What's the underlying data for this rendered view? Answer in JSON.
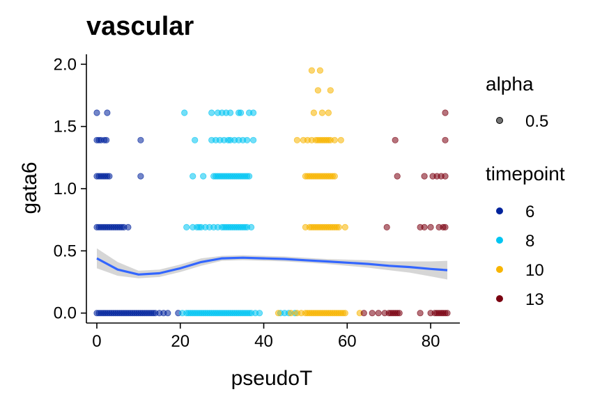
{
  "chart_data": {
    "type": "scatter",
    "title": "vascular",
    "xlabel": "pseudoT",
    "ylabel": "gata6",
    "xlim": [
      -2.5,
      87
    ],
    "ylim": [
      -0.08,
      2.08
    ],
    "x_ticks": [
      "0",
      "20",
      "40",
      "60",
      "80"
    ],
    "x_tick_values": [
      0,
      20,
      40,
      60,
      80
    ],
    "y_ticks": [
      "0.0",
      "0.5",
      "1.0",
      "1.5",
      "2.0"
    ],
    "y_tick_values": [
      0,
      0.5,
      1.0,
      1.5,
      2.0
    ],
    "grid": false,
    "legend_position": "right",
    "legend": {
      "alpha": {
        "title": "alpha",
        "entries": [
          {
            "label": "0.5",
            "color": "#000000"
          }
        ]
      },
      "timepoint": {
        "title": "timepoint",
        "entries": [
          {
            "label": "6",
            "color": "#00239C"
          },
          {
            "label": "8",
            "color": "#00C5F2"
          },
          {
            "label": "10",
            "color": "#F8B500"
          },
          {
            "label": "13",
            "color": "#7A0010"
          }
        ]
      }
    },
    "series": [
      {
        "name": "6",
        "color": "#00239C",
        "points": [
          [
            0,
            1.61
          ],
          [
            2.5,
            1.61
          ],
          [
            0,
            1.39
          ],
          [
            0.5,
            1.39
          ],
          [
            1,
            1.39
          ],
          [
            1.8,
            1.39
          ],
          [
            2.3,
            1.39
          ],
          [
            10.5,
            1.39
          ],
          [
            0,
            1.1
          ],
          [
            0.5,
            1.1
          ],
          [
            1,
            1.1
          ],
          [
            1.5,
            1.1
          ],
          [
            2,
            1.1
          ],
          [
            2.5,
            1.1
          ],
          [
            3,
            1.1
          ],
          [
            10.5,
            1.1
          ],
          [
            0,
            0.69
          ],
          [
            0.5,
            0.69
          ],
          [
            1,
            0.69
          ],
          [
            1.5,
            0.69
          ],
          [
            2,
            0.69
          ],
          [
            2.5,
            0.69
          ],
          [
            3,
            0.69
          ],
          [
            3.5,
            0.69
          ],
          [
            4,
            0.69
          ],
          [
            4.5,
            0.69
          ],
          [
            5,
            0.69
          ],
          [
            5.5,
            0.69
          ],
          [
            6,
            0.69
          ],
          [
            6.5,
            0.69
          ],
          [
            7.5,
            0.69
          ],
          [
            0,
            0
          ],
          [
            0.5,
            0
          ],
          [
            1,
            0
          ],
          [
            1.5,
            0
          ],
          [
            2,
            0
          ],
          [
            2.5,
            0
          ],
          [
            3,
            0
          ],
          [
            3.5,
            0
          ],
          [
            4,
            0
          ],
          [
            4.5,
            0
          ],
          [
            5,
            0
          ],
          [
            5.5,
            0
          ],
          [
            6,
            0
          ],
          [
            6.5,
            0
          ],
          [
            7,
            0
          ],
          [
            7.5,
            0
          ],
          [
            8,
            0
          ],
          [
            8.5,
            0
          ],
          [
            9,
            0
          ],
          [
            9.5,
            0
          ],
          [
            10,
            0
          ],
          [
            10.5,
            0
          ],
          [
            11,
            0
          ],
          [
            11.5,
            0
          ],
          [
            12,
            0
          ],
          [
            12.5,
            0
          ],
          [
            13,
            0
          ],
          [
            13.5,
            0
          ],
          [
            14,
            0
          ],
          [
            15,
            0
          ],
          [
            16,
            0
          ],
          [
            17,
            0
          ],
          [
            19.5,
            0
          ]
        ]
      },
      {
        "name": "8",
        "color": "#00C5F2",
        "points": [
          [
            21,
            1.61
          ],
          [
            27.5,
            1.61
          ],
          [
            29,
            1.61
          ],
          [
            30,
            1.61
          ],
          [
            31,
            1.61
          ],
          [
            32,
            1.61
          ],
          [
            34,
            1.61
          ],
          [
            34.5,
            1.61
          ],
          [
            36.5,
            1.61
          ],
          [
            37.5,
            1.61
          ],
          [
            23.5,
            1.39
          ],
          [
            27.5,
            1.39
          ],
          [
            28.5,
            1.39
          ],
          [
            29.5,
            1.39
          ],
          [
            30.5,
            1.39
          ],
          [
            31.5,
            1.39
          ],
          [
            32,
            1.39
          ],
          [
            33,
            1.39
          ],
          [
            34,
            1.39
          ],
          [
            35,
            1.39
          ],
          [
            36,
            1.39
          ],
          [
            37.5,
            1.39
          ],
          [
            23,
            1.1
          ],
          [
            25.5,
            1.1
          ],
          [
            28,
            1.1
          ],
          [
            28.5,
            1.1
          ],
          [
            29,
            1.1
          ],
          [
            29.5,
            1.1
          ],
          [
            30,
            1.1
          ],
          [
            30.5,
            1.1
          ],
          [
            31,
            1.1
          ],
          [
            31.5,
            1.1
          ],
          [
            32,
            1.1
          ],
          [
            32.5,
            1.1
          ],
          [
            33,
            1.1
          ],
          [
            33.5,
            1.1
          ],
          [
            34,
            1.1
          ],
          [
            34.5,
            1.1
          ],
          [
            35,
            1.1
          ],
          [
            35.5,
            1.1
          ],
          [
            36,
            1.1
          ],
          [
            36.5,
            1.1
          ],
          [
            21.5,
            0.69
          ],
          [
            23,
            0.69
          ],
          [
            24,
            0.69
          ],
          [
            24.5,
            0.69
          ],
          [
            25,
            0.69
          ],
          [
            26,
            0.69
          ],
          [
            27,
            0.69
          ],
          [
            28,
            0.69
          ],
          [
            29,
            0.69
          ],
          [
            30,
            0.69
          ],
          [
            30.5,
            0.69
          ],
          [
            31,
            0.69
          ],
          [
            31.5,
            0.69
          ],
          [
            32,
            0.69
          ],
          [
            32.5,
            0.69
          ],
          [
            33,
            0.69
          ],
          [
            33.5,
            0.69
          ],
          [
            34,
            0.69
          ],
          [
            34.5,
            0.69
          ],
          [
            35,
            0.69
          ],
          [
            35.5,
            0.69
          ],
          [
            36,
            0.69
          ],
          [
            37,
            0.69
          ],
          [
            20.5,
            0
          ],
          [
            21.5,
            0
          ],
          [
            22,
            0
          ],
          [
            22.5,
            0
          ],
          [
            23,
            0
          ],
          [
            23.5,
            0
          ],
          [
            24,
            0
          ],
          [
            24.5,
            0
          ],
          [
            25,
            0
          ],
          [
            25.5,
            0
          ],
          [
            26,
            0
          ],
          [
            26.5,
            0
          ],
          [
            27,
            0
          ],
          [
            27.5,
            0
          ],
          [
            28,
            0
          ],
          [
            28.5,
            0
          ],
          [
            29,
            0
          ],
          [
            29.5,
            0
          ],
          [
            30,
            0
          ],
          [
            30.5,
            0
          ],
          [
            31,
            0
          ],
          [
            31.5,
            0
          ],
          [
            32,
            0
          ],
          [
            32.5,
            0
          ],
          [
            33,
            0
          ],
          [
            33.5,
            0
          ],
          [
            34,
            0
          ],
          [
            34.5,
            0
          ],
          [
            35,
            0
          ],
          [
            35.5,
            0
          ],
          [
            36,
            0
          ],
          [
            36.5,
            0
          ],
          [
            37,
            0
          ],
          [
            38,
            0
          ],
          [
            39,
            0
          ],
          [
            44,
            0
          ],
          [
            45,
            0
          ],
          [
            46,
            0
          ],
          [
            47.5,
            0
          ]
        ]
      },
      {
        "name": "10",
        "color": "#F8B500",
        "points": [
          [
            51.5,
            1.95
          ],
          [
            53.5,
            1.95
          ],
          [
            53,
            1.79
          ],
          [
            56,
            1.79
          ],
          [
            52,
            1.61
          ],
          [
            54,
            1.61
          ],
          [
            55.5,
            1.61
          ],
          [
            48,
            1.39
          ],
          [
            49.5,
            1.39
          ],
          [
            50.5,
            1.39
          ],
          [
            51.5,
            1.39
          ],
          [
            52.5,
            1.39
          ],
          [
            53,
            1.39
          ],
          [
            53.5,
            1.39
          ],
          [
            54,
            1.39
          ],
          [
            54.5,
            1.39
          ],
          [
            55,
            1.39
          ],
          [
            55.5,
            1.39
          ],
          [
            56,
            1.39
          ],
          [
            57,
            1.39
          ],
          [
            58.5,
            1.39
          ],
          [
            50,
            1.1
          ],
          [
            50.5,
            1.1
          ],
          [
            51,
            1.1
          ],
          [
            51.5,
            1.1
          ],
          [
            52,
            1.1
          ],
          [
            52.5,
            1.1
          ],
          [
            53,
            1.1
          ],
          [
            53.5,
            1.1
          ],
          [
            54,
            1.1
          ],
          [
            54.5,
            1.1
          ],
          [
            55,
            1.1
          ],
          [
            55.5,
            1.1
          ],
          [
            56,
            1.1
          ],
          [
            56.5,
            1.1
          ],
          [
            57,
            1.1
          ],
          [
            50,
            0.69
          ],
          [
            51,
            0.69
          ],
          [
            51.5,
            0.69
          ],
          [
            52,
            0.69
          ],
          [
            52.5,
            0.69
          ],
          [
            53,
            0.69
          ],
          [
            53.5,
            0.69
          ],
          [
            54,
            0.69
          ],
          [
            54.5,
            0.69
          ],
          [
            55,
            0.69
          ],
          [
            55.5,
            0.69
          ],
          [
            56,
            0.69
          ],
          [
            56.5,
            0.69
          ],
          [
            57,
            0.69
          ],
          [
            57.5,
            0.69
          ],
          [
            58,
            0.69
          ],
          [
            59.5,
            0.69
          ],
          [
            43.5,
            0
          ],
          [
            46.5,
            0
          ],
          [
            48,
            0
          ],
          [
            49,
            0
          ],
          [
            50,
            0
          ],
          [
            50.5,
            0
          ],
          [
            51,
            0
          ],
          [
            51.5,
            0
          ],
          [
            52,
            0
          ],
          [
            52.5,
            0
          ],
          [
            53,
            0
          ],
          [
            53.5,
            0
          ],
          [
            54,
            0
          ],
          [
            54.5,
            0
          ],
          [
            55,
            0
          ],
          [
            55.5,
            0
          ],
          [
            56,
            0
          ],
          [
            56.5,
            0
          ],
          [
            57,
            0
          ],
          [
            57.5,
            0
          ],
          [
            58,
            0
          ],
          [
            58.5,
            0
          ],
          [
            59,
            0
          ],
          [
            59.5,
            0
          ],
          [
            63,
            0
          ]
        ]
      },
      {
        "name": "13",
        "color": "#7A0010",
        "points": [
          [
            83.5,
            1.61
          ],
          [
            71.5,
            1.39
          ],
          [
            83.5,
            1.39
          ],
          [
            72,
            1.1
          ],
          [
            78.5,
            1.1
          ],
          [
            80.5,
            1.1
          ],
          [
            81.5,
            1.1
          ],
          [
            82.5,
            1.1
          ],
          [
            83.5,
            1.1
          ],
          [
            69.5,
            0.69
          ],
          [
            77.5,
            0.69
          ],
          [
            78.5,
            0.69
          ],
          [
            80,
            0.69
          ],
          [
            82,
            0.69
          ],
          [
            83,
            0.69
          ],
          [
            83.5,
            0.69
          ],
          [
            64,
            0
          ],
          [
            66,
            0
          ],
          [
            67.5,
            0
          ],
          [
            69,
            0
          ],
          [
            70,
            0
          ],
          [
            70.5,
            0
          ],
          [
            71,
            0
          ],
          [
            71.5,
            0
          ],
          [
            72,
            0
          ],
          [
            72.5,
            0
          ],
          [
            77.5,
            0
          ],
          [
            80,
            0
          ],
          [
            81,
            0
          ],
          [
            81.5,
            0
          ],
          [
            82,
            0
          ],
          [
            82.5,
            0
          ],
          [
            83,
            0
          ],
          [
            83.5,
            0
          ],
          [
            84,
            0
          ]
        ]
      }
    ],
    "smooth": {
      "color": "#3366FF",
      "band_color": "#C8C8C8",
      "x": [
        0,
        5,
        10,
        15,
        20,
        25,
        30,
        35,
        40,
        45,
        50,
        55,
        60,
        65,
        70,
        75,
        80,
        84
      ],
      "y": [
        0.44,
        0.35,
        0.31,
        0.32,
        0.36,
        0.41,
        0.44,
        0.445,
        0.44,
        0.435,
        0.425,
        0.415,
        0.405,
        0.395,
        0.38,
        0.37,
        0.355,
        0.345
      ],
      "lower": [
        0.36,
        0.3,
        0.28,
        0.29,
        0.33,
        0.38,
        0.42,
        0.425,
        0.42,
        0.415,
        0.405,
        0.395,
        0.38,
        0.365,
        0.345,
        0.325,
        0.295,
        0.27
      ],
      "upper": [
        0.52,
        0.41,
        0.34,
        0.35,
        0.39,
        0.44,
        0.46,
        0.465,
        0.46,
        0.455,
        0.445,
        0.435,
        0.43,
        0.425,
        0.415,
        0.415,
        0.415,
        0.42
      ]
    }
  }
}
